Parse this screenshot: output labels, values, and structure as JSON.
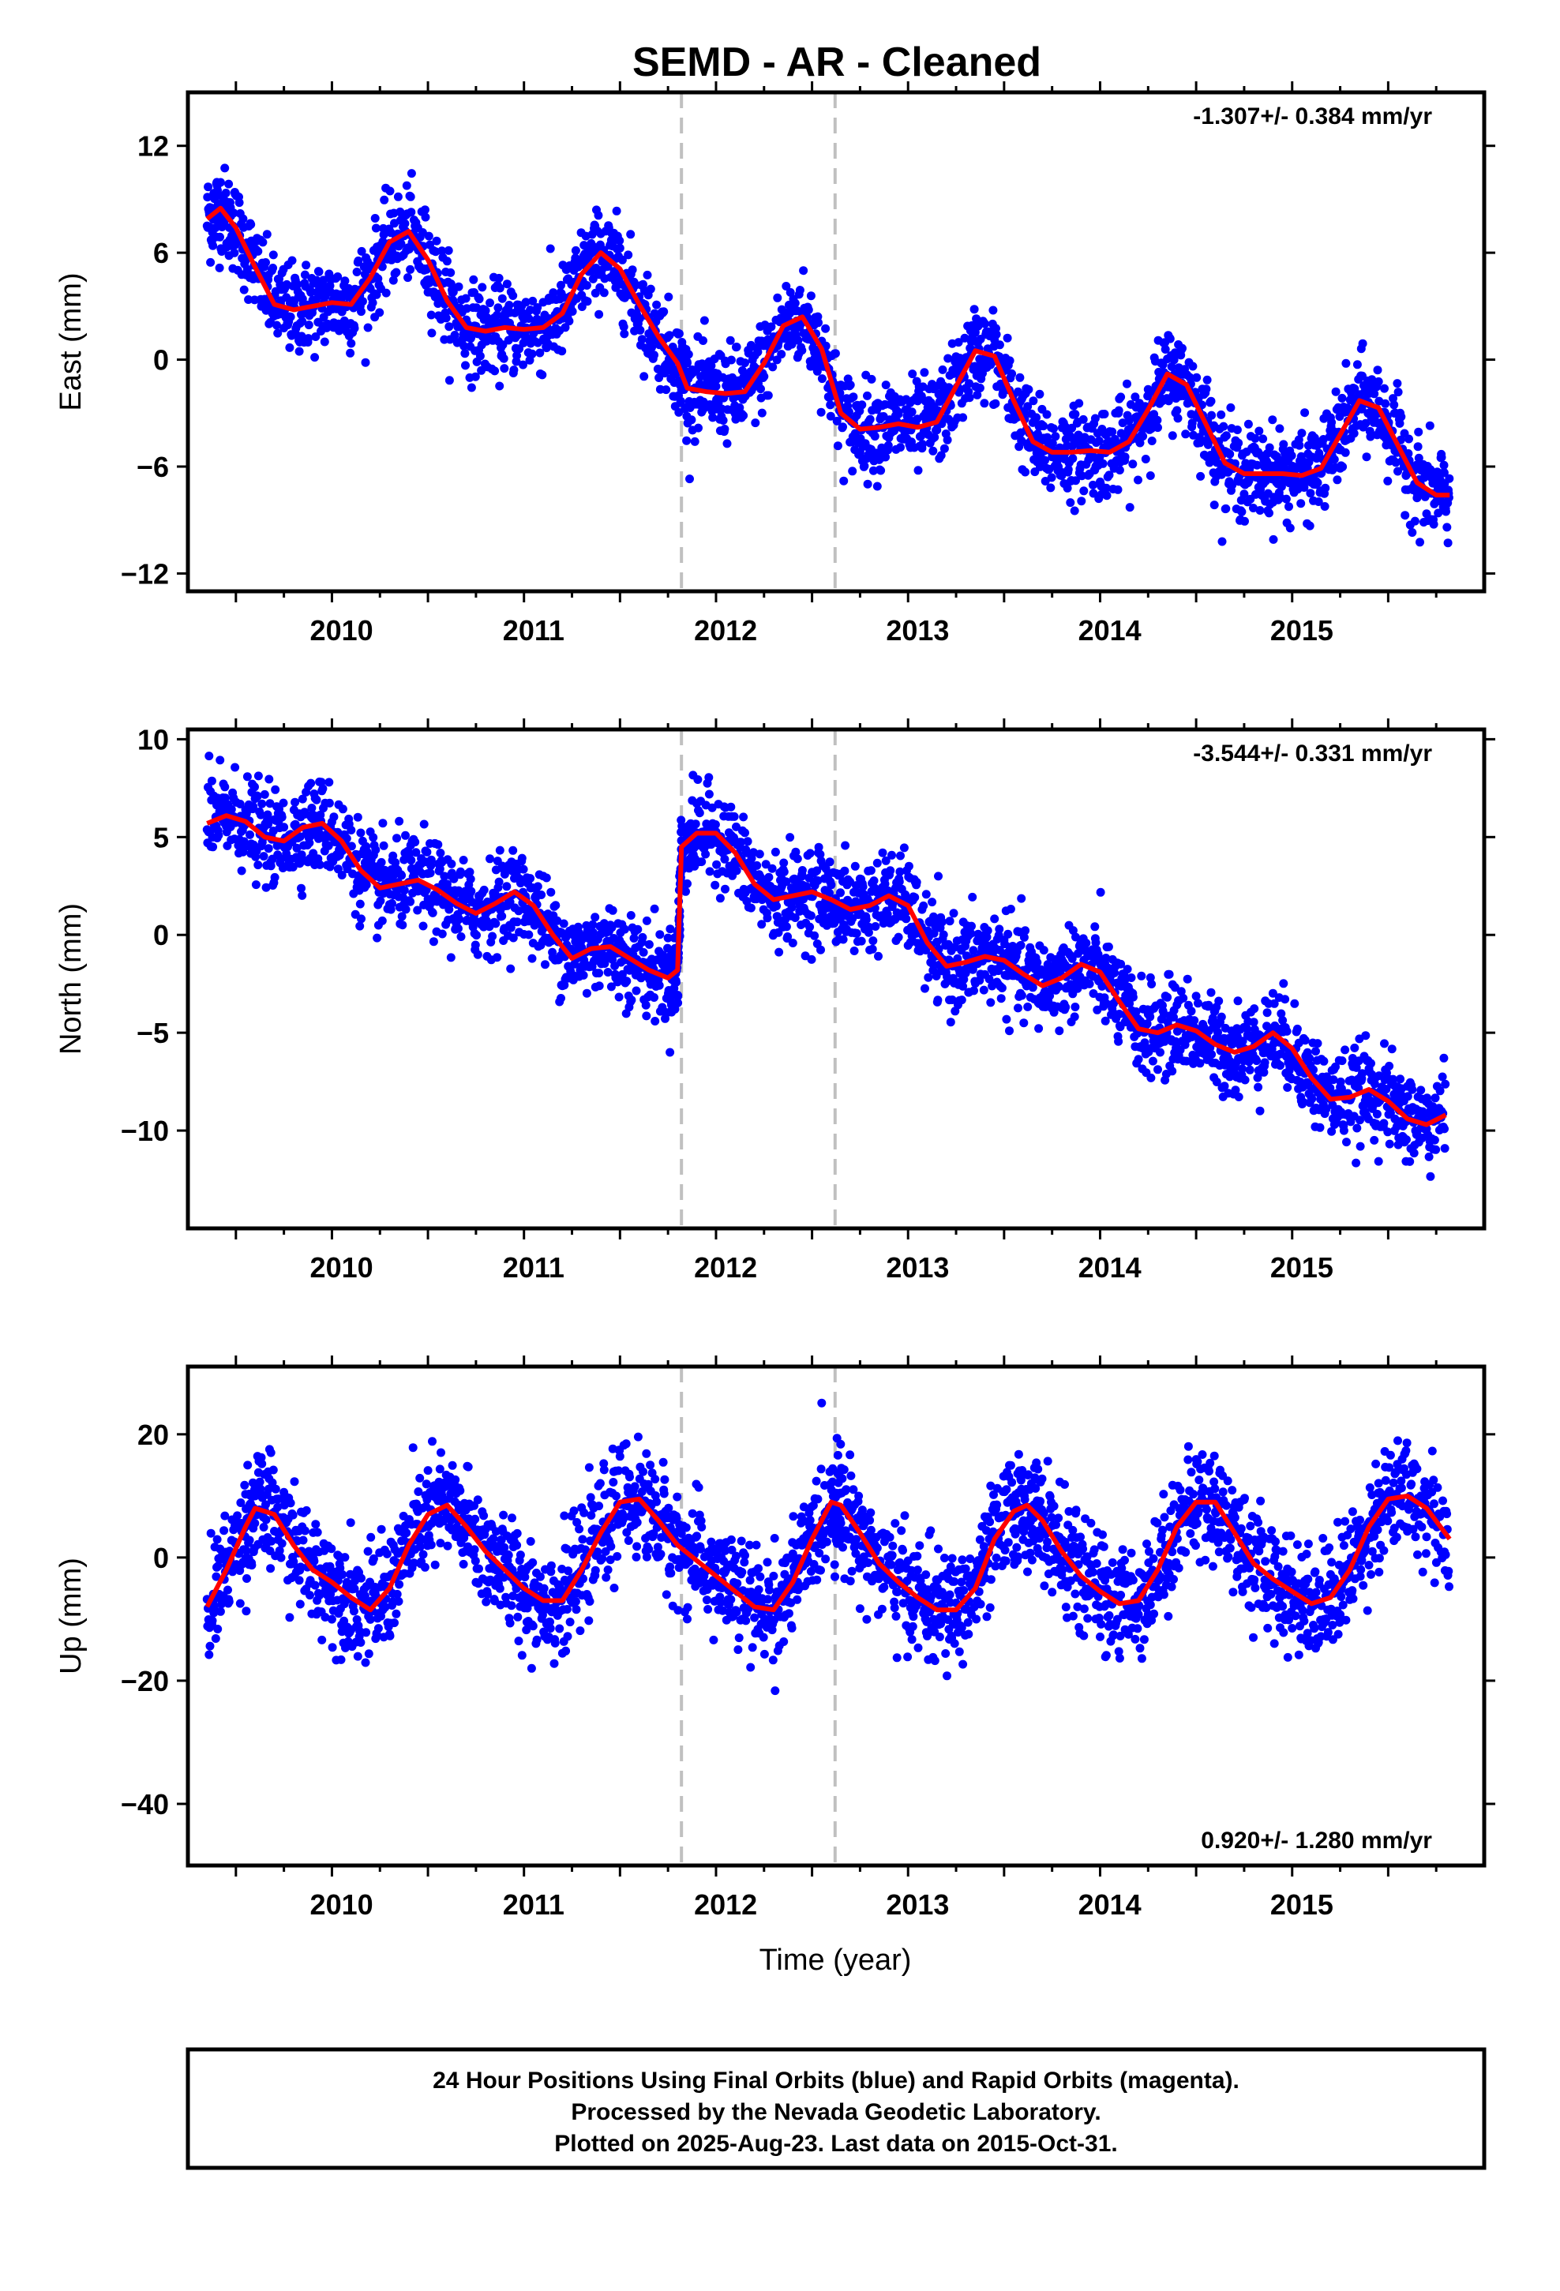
{
  "figure": {
    "title": "SEMD  - AR - Cleaned",
    "footer": [
      "24 Hour Positions Using Final Orbits (blue) and Rapid Orbits (magenta).",
      "Processed by the Nevada Geodetic Laboratory.",
      "Plotted on 2025-Aug-23. Last data on 2015-Oct-31."
    ]
  },
  "colors": {
    "points": "#0000ff",
    "fit": "#ff0000",
    "breaks": "#c0c0c0",
    "frame": "#000000"
  },
  "chart_data": [
    {
      "type": "scatter",
      "title": "",
      "xlabel": "",
      "ylabel": "East (mm)",
      "xlim": [
        2009.25,
        2016.0
      ],
      "ylim": [
        -13.0,
        15.0
      ],
      "xticks": [
        2010,
        2011,
        2012,
        2013,
        2014,
        2015
      ],
      "yticks": [
        12,
        6,
        0,
        -6,
        -12
      ],
      "rate_label": "-1.307+/- 0.384 mm/yr",
      "rate_position": "top-right",
      "breaks": [
        2011.82,
        2012.62
      ],
      "series": [
        {
          "role": "daily positions",
          "x": [
            2009.35,
            2009.42,
            2009.5,
            2009.6,
            2009.7,
            2009.8,
            2009.9,
            2010.0,
            2010.1,
            2010.2,
            2010.3,
            2010.4,
            2010.5,
            2010.6,
            2010.7,
            2010.8,
            2010.9,
            2011.0,
            2011.1,
            2011.2,
            2011.3,
            2011.4,
            2011.5,
            2011.6,
            2011.7,
            2011.8,
            2011.85,
            2011.95,
            2012.05,
            2012.15,
            2012.25,
            2012.35,
            2012.45,
            2012.55,
            2012.65,
            2012.75,
            2012.85,
            2012.95,
            2013.05,
            2013.15,
            2013.25,
            2013.35,
            2013.45,
            2013.55,
            2013.65,
            2013.75,
            2013.85,
            2013.95,
            2014.05,
            2014.15,
            2014.25,
            2014.35,
            2014.45,
            2014.55,
            2014.65,
            2014.75,
            2014.85,
            2014.95,
            2015.05,
            2015.15,
            2015.25,
            2015.35,
            2015.45,
            2015.55,
            2015.65,
            2015.75,
            2015.82
          ],
          "y": [
            7.9,
            8.5,
            7.4,
            5.2,
            3.1,
            2.8,
            3.0,
            3.2,
            3.1,
            4.6,
            6.6,
            7.2,
            5.6,
            3.3,
            1.8,
            1.6,
            1.8,
            1.7,
            1.8,
            2.6,
            4.8,
            6.0,
            5.1,
            3.1,
            1.3,
            -0.2,
            -1.6,
            -1.8,
            -1.9,
            -1.8,
            -0.2,
            1.9,
            2.4,
            0.6,
            -3.0,
            -3.9,
            -3.8,
            -3.6,
            -3.8,
            -3.5,
            -1.5,
            0.5,
            0.2,
            -2.3,
            -4.6,
            -5.2,
            -5.2,
            -5.1,
            -5.2,
            -4.6,
            -2.8,
            -0.8,
            -1.4,
            -3.6,
            -5.8,
            -6.4,
            -6.4,
            -6.4,
            -6.5,
            -6.1,
            -4.2,
            -2.3,
            -2.7,
            -4.8,
            -6.9,
            -7.6,
            -7.6
          ]
        },
        {
          "role": "model fit",
          "x": [
            2009.35,
            2009.42,
            2009.5,
            2009.6,
            2009.7,
            2009.8,
            2009.9,
            2010.0,
            2010.1,
            2010.2,
            2010.3,
            2010.4,
            2010.5,
            2010.6,
            2010.7,
            2010.8,
            2010.9,
            2011.0,
            2011.1,
            2011.2,
            2011.3,
            2011.4,
            2011.5,
            2011.6,
            2011.7,
            2011.8,
            2011.85,
            2011.95,
            2012.05,
            2012.15,
            2012.25,
            2012.35,
            2012.45,
            2012.55,
            2012.65,
            2012.75,
            2012.85,
            2012.95,
            2013.05,
            2013.15,
            2013.25,
            2013.35,
            2013.45,
            2013.55,
            2013.65,
            2013.75,
            2013.85,
            2013.95,
            2014.05,
            2014.15,
            2014.25,
            2014.35,
            2014.45,
            2014.55,
            2014.65,
            2014.75,
            2014.85,
            2014.95,
            2015.05,
            2015.15,
            2015.25,
            2015.35,
            2015.45,
            2015.55,
            2015.65,
            2015.75,
            2015.82
          ],
          "y": [
            7.9,
            8.5,
            7.4,
            5.2,
            3.1,
            2.8,
            3.0,
            3.2,
            3.1,
            4.6,
            6.6,
            7.2,
            5.6,
            3.3,
            1.8,
            1.6,
            1.8,
            1.7,
            1.8,
            2.6,
            4.8,
            6.0,
            5.1,
            3.1,
            1.3,
            -0.2,
            -1.6,
            -1.8,
            -1.9,
            -1.8,
            -0.2,
            1.9,
            2.4,
            0.6,
            -3.0,
            -3.9,
            -3.8,
            -3.6,
            -3.8,
            -3.5,
            -1.5,
            0.5,
            0.2,
            -2.3,
            -4.6,
            -5.2,
            -5.2,
            -5.1,
            -5.2,
            -4.6,
            -2.8,
            -0.8,
            -1.4,
            -3.6,
            -5.8,
            -6.4,
            -6.4,
            -6.4,
            -6.5,
            -6.1,
            -4.2,
            -2.3,
            -2.7,
            -4.8,
            -6.9,
            -7.6,
            -7.6
          ]
        }
      ]
    },
    {
      "type": "scatter",
      "title": "",
      "xlabel": "",
      "ylabel": "North (mm)",
      "xlim": [
        2009.25,
        2016.0
      ],
      "ylim": [
        -15.0,
        10.5
      ],
      "xticks": [
        2010,
        2011,
        2012,
        2013,
        2014,
        2015
      ],
      "yticks": [
        10,
        5,
        0,
        -5,
        -10
      ],
      "rate_label": "-3.544+/- 0.331 mm/yr",
      "rate_position": "top-right",
      "breaks": [
        2011.82,
        2012.62
      ],
      "series": [
        {
          "role": "daily positions",
          "x": [
            2009.35,
            2009.45,
            2009.55,
            2009.65,
            2009.75,
            2009.85,
            2009.95,
            2010.05,
            2010.15,
            2010.25,
            2010.35,
            2010.45,
            2010.55,
            2010.65,
            2010.75,
            2010.85,
            2010.95,
            2011.05,
            2011.15,
            2011.25,
            2011.35,
            2011.45,
            2011.55,
            2011.65,
            2011.75,
            2011.8,
            2011.82,
            2011.9,
            2012.0,
            2012.1,
            2012.2,
            2012.3,
            2012.4,
            2012.5,
            2012.6,
            2012.7,
            2012.8,
            2012.9,
            2013.0,
            2013.1,
            2013.2,
            2013.3,
            2013.4,
            2013.5,
            2013.6,
            2013.7,
            2013.8,
            2013.9,
            2014.0,
            2014.1,
            2014.2,
            2014.3,
            2014.4,
            2014.5,
            2014.6,
            2014.7,
            2014.8,
            2014.9,
            2015.0,
            2015.1,
            2015.2,
            2015.3,
            2015.4,
            2015.5,
            2015.6,
            2015.7,
            2015.8
          ],
          "y": [
            5.7,
            6.1,
            5.8,
            5.0,
            4.8,
            5.5,
            5.7,
            4.8,
            3.3,
            2.4,
            2.6,
            2.8,
            2.3,
            1.6,
            1.1,
            1.6,
            2.2,
            1.5,
            0.0,
            -1.2,
            -0.7,
            -0.6,
            -1.2,
            -1.8,
            -2.2,
            -1.8,
            4.5,
            5.2,
            5.2,
            4.2,
            2.6,
            1.8,
            2.0,
            2.2,
            1.8,
            1.3,
            1.5,
            2.0,
            1.5,
            -0.4,
            -1.6,
            -1.4,
            -1.1,
            -1.3,
            -2.0,
            -2.6,
            -2.2,
            -1.5,
            -1.9,
            -3.4,
            -4.8,
            -5.0,
            -4.6,
            -4.9,
            -5.6,
            -6.0,
            -5.7,
            -5.0,
            -5.8,
            -7.3,
            -8.4,
            -8.3,
            -7.9,
            -8.5,
            -9.4,
            -9.7,
            -9.2
          ]
        },
        {
          "role": "model fit",
          "x": [
            2009.35,
            2009.45,
            2009.55,
            2009.65,
            2009.75,
            2009.85,
            2009.95,
            2010.05,
            2010.15,
            2010.25,
            2010.35,
            2010.45,
            2010.55,
            2010.65,
            2010.75,
            2010.85,
            2010.95,
            2011.05,
            2011.15,
            2011.25,
            2011.35,
            2011.45,
            2011.55,
            2011.65,
            2011.75,
            2011.8,
            2011.82,
            2011.9,
            2012.0,
            2012.1,
            2012.2,
            2012.3,
            2012.4,
            2012.5,
            2012.6,
            2012.7,
            2012.8,
            2012.9,
            2013.0,
            2013.1,
            2013.2,
            2013.3,
            2013.4,
            2013.5,
            2013.6,
            2013.7,
            2013.8,
            2013.9,
            2014.0,
            2014.1,
            2014.2,
            2014.3,
            2014.4,
            2014.5,
            2014.6,
            2014.7,
            2014.8,
            2014.9,
            2015.0,
            2015.1,
            2015.2,
            2015.3,
            2015.4,
            2015.5,
            2015.6,
            2015.7,
            2015.8
          ],
          "y": [
            5.7,
            6.1,
            5.8,
            5.0,
            4.8,
            5.5,
            5.7,
            4.8,
            3.3,
            2.4,
            2.6,
            2.8,
            2.3,
            1.6,
            1.1,
            1.6,
            2.2,
            1.5,
            0.0,
            -1.2,
            -0.7,
            -0.6,
            -1.2,
            -1.8,
            -2.2,
            -1.8,
            4.5,
            5.2,
            5.2,
            4.2,
            2.6,
            1.8,
            2.0,
            2.2,
            1.8,
            1.3,
            1.5,
            2.0,
            1.5,
            -0.4,
            -1.6,
            -1.4,
            -1.1,
            -1.3,
            -2.0,
            -2.6,
            -2.2,
            -1.5,
            -1.9,
            -3.4,
            -4.8,
            -5.0,
            -4.6,
            -4.9,
            -5.6,
            -6.0,
            -5.7,
            -5.0,
            -5.8,
            -7.3,
            -8.4,
            -8.3,
            -7.9,
            -8.5,
            -9.4,
            -9.7,
            -9.2
          ]
        }
      ]
    },
    {
      "type": "scatter",
      "title": "",
      "xlabel": "Time (year)",
      "ylabel": "Up (mm)",
      "xlim": [
        2009.25,
        2016.0
      ],
      "ylim": [
        -50.0,
        31.0
      ],
      "xticks": [
        2010,
        2011,
        2012,
        2013,
        2014,
        2015
      ],
      "yticks": [
        20,
        0,
        -20,
        -40
      ],
      "rate_label": "0.920+/- 1.280 mm/yr",
      "rate_position": "bottom-right",
      "breaks": [
        2011.82,
        2012.62
      ],
      "series": [
        {
          "role": "daily positions",
          "x": [
            2009.35,
            2009.45,
            2009.55,
            2009.6,
            2009.7,
            2009.8,
            2009.9,
            2010.0,
            2010.1,
            2010.2,
            2010.3,
            2010.4,
            2010.5,
            2010.6,
            2010.7,
            2010.8,
            2010.9,
            2011.0,
            2011.1,
            2011.2,
            2011.3,
            2011.4,
            2011.5,
            2011.6,
            2011.7,
            2011.8,
            2011.9,
            2012.0,
            2012.1,
            2012.2,
            2012.3,
            2012.4,
            2012.5,
            2012.6,
            2012.65,
            2012.75,
            2012.85,
            2012.95,
            2013.05,
            2013.15,
            2013.25,
            2013.35,
            2013.45,
            2013.55,
            2013.62,
            2013.7,
            2013.8,
            2013.9,
            2014.0,
            2014.1,
            2014.2,
            2014.3,
            2014.4,
            2014.5,
            2014.6,
            2014.7,
            2014.8,
            2014.9,
            2015.0,
            2015.1,
            2015.2,
            2015.3,
            2015.4,
            2015.5,
            2015.6,
            2015.7,
            2015.82
          ],
          "y": [
            -8.0,
            -2.0,
            5.0,
            8.0,
            7.0,
            2.0,
            -2.0,
            -4.0,
            -6.5,
            -8.5,
            -5.0,
            2.0,
            7.0,
            8.5,
            5.0,
            1.0,
            -2.0,
            -5.0,
            -7.0,
            -7.0,
            -2.0,
            4.0,
            9.0,
            9.5,
            6.0,
            2.0,
            -0.5,
            -3.0,
            -5.5,
            -8.0,
            -8.5,
            -4.0,
            3.0,
            9.0,
            8.5,
            4.0,
            -1.0,
            -4.0,
            -6.5,
            -8.5,
            -8.5,
            -5.0,
            3.0,
            7.5,
            8.5,
            6.0,
            1.0,
            -3.0,
            -5.5,
            -7.5,
            -7.0,
            -2.0,
            5.0,
            9.0,
            9.0,
            4.0,
            -1.0,
            -3.5,
            -5.5,
            -7.5,
            -6.5,
            -2.0,
            5.0,
            9.5,
            10.0,
            8.0,
            3.0
          ]
        },
        {
          "role": "model fit",
          "x": [
            2009.35,
            2009.45,
            2009.55,
            2009.6,
            2009.7,
            2009.8,
            2009.9,
            2010.0,
            2010.1,
            2010.2,
            2010.3,
            2010.4,
            2010.5,
            2010.6,
            2010.7,
            2010.8,
            2010.9,
            2011.0,
            2011.1,
            2011.2,
            2011.3,
            2011.4,
            2011.5,
            2011.6,
            2011.7,
            2011.8,
            2011.9,
            2012.0,
            2012.1,
            2012.2,
            2012.3,
            2012.4,
            2012.5,
            2012.6,
            2012.65,
            2012.75,
            2012.85,
            2012.95,
            2013.05,
            2013.15,
            2013.25,
            2013.35,
            2013.45,
            2013.55,
            2013.62,
            2013.7,
            2013.8,
            2013.9,
            2014.0,
            2014.1,
            2014.2,
            2014.3,
            2014.4,
            2014.5,
            2014.6,
            2014.7,
            2014.8,
            2014.9,
            2015.0,
            2015.1,
            2015.2,
            2015.3,
            2015.4,
            2015.5,
            2015.6,
            2015.7,
            2015.82
          ],
          "y": [
            -8.0,
            -2.0,
            5.0,
            8.0,
            7.0,
            2.0,
            -2.0,
            -4.0,
            -6.5,
            -8.5,
            -5.0,
            2.0,
            7.0,
            8.5,
            5.0,
            1.0,
            -2.0,
            -5.0,
            -7.0,
            -7.0,
            -2.0,
            4.0,
            9.0,
            9.5,
            6.0,
            2.0,
            -0.5,
            -3.0,
            -5.5,
            -8.0,
            -8.5,
            -4.0,
            3.0,
            9.0,
            8.5,
            4.0,
            -1.0,
            -4.0,
            -6.5,
            -8.5,
            -8.5,
            -5.0,
            3.0,
            7.5,
            8.5,
            6.0,
            1.0,
            -3.0,
            -5.5,
            -7.5,
            -7.0,
            -2.0,
            5.0,
            9.0,
            9.0,
            4.0,
            -1.0,
            -3.5,
            -5.5,
            -7.5,
            -6.5,
            -2.0,
            5.0,
            9.5,
            10.0,
            8.0,
            3.0
          ]
        }
      ]
    }
  ]
}
